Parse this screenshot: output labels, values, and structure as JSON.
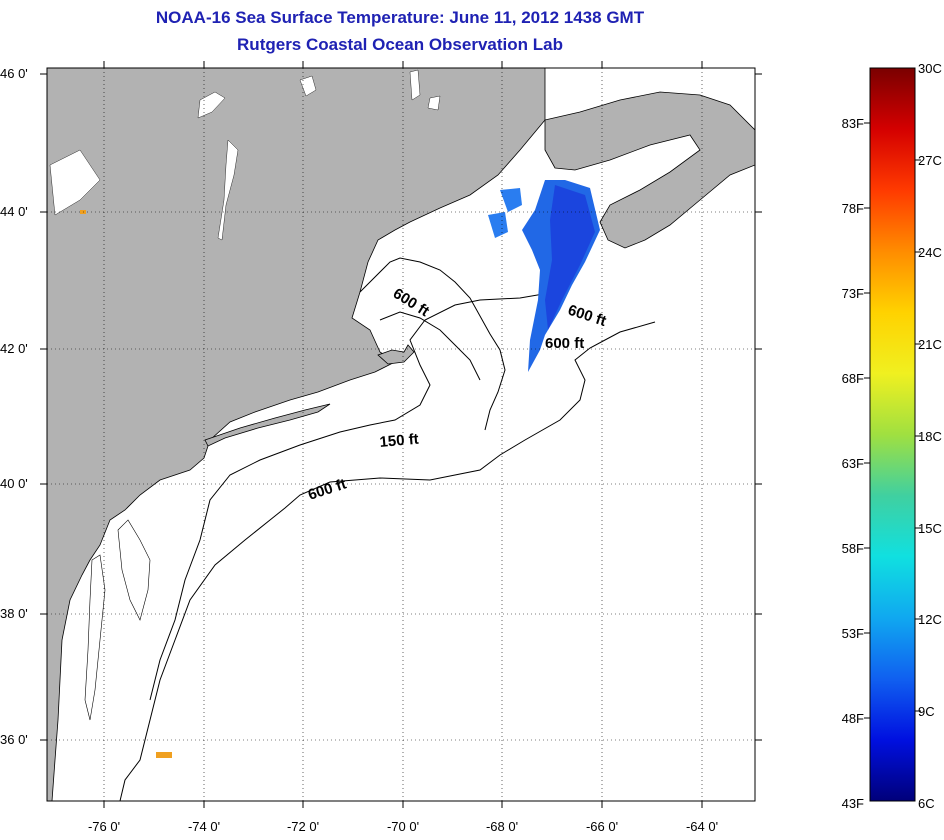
{
  "title": {
    "line1": "NOAA-16 Sea Surface Temperature:  June 11, 2012 1438 GMT",
    "line2": "Rutgers Coastal Ocean Observation Lab"
  },
  "colors": {
    "title": "#1f22b3",
    "land": "#b2b2b2",
    "ocean": "#ffffff",
    "sst_cold": "#1a3fdc",
    "sst_mid": "#2a7df0",
    "missing_warm": "#f0a020"
  },
  "map": {
    "lat_labels": [
      "46 0'",
      "44 0'",
      "42 0'",
      "40 0'",
      "38 0'",
      "36 0'"
    ],
    "lon_labels": [
      "-76 0'",
      "-74 0'",
      "-72 0'",
      "-70 0'",
      "-68 0'",
      "-66 0'",
      "-64 0'"
    ],
    "contour_labels": [
      "600 ft",
      "600 ft",
      "600 ft",
      "150 ft",
      "600 ft"
    ]
  },
  "colorbar": {
    "celsius_labels": [
      "30C",
      "27C",
      "24C",
      "21C",
      "18C",
      "15C",
      "12C",
      "9C",
      "6C"
    ],
    "fahrenheit_labels": [
      "83F",
      "78F",
      "73F",
      "68F",
      "63F",
      "58F",
      "53F",
      "48F",
      "43F"
    ],
    "stops": [
      "#7a0000",
      "#d40000",
      "#ff3a00",
      "#ff8c00",
      "#ffd200",
      "#f0f020",
      "#a0e040",
      "#40d0a0",
      "#10e0e0",
      "#10a8f0",
      "#1060f0",
      "#0010e0",
      "#00007a"
    ]
  }
}
